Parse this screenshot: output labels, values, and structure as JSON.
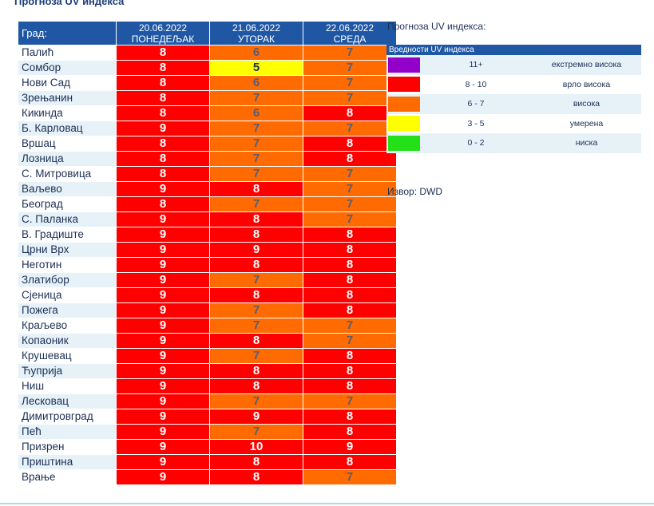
{
  "title": "Прогноза UV индекса",
  "table": {
    "city_header": "Град:",
    "columns": [
      {
        "date": "20.06.2022",
        "day": "ПОНЕДЕЉАК"
      },
      {
        "date": "21.06.2022",
        "day": "УТОРАК"
      },
      {
        "date": "22.06.2022",
        "day": "СРЕДА"
      }
    ],
    "rows": [
      {
        "city": "Палић",
        "values": [
          "8",
          "6",
          "7"
        ]
      },
      {
        "city": "Сомбор",
        "values": [
          "8",
          "5",
          "7"
        ]
      },
      {
        "city": "Нови Сад",
        "values": [
          "8",
          "6",
          "7"
        ]
      },
      {
        "city": "Зрењанин",
        "values": [
          "8",
          "7",
          "7"
        ]
      },
      {
        "city": "Кикинда",
        "values": [
          "8",
          "6",
          "8"
        ]
      },
      {
        "city": "Б. Карловац",
        "values": [
          "9",
          "7",
          "7"
        ]
      },
      {
        "city": "Вршац",
        "values": [
          "8",
          "7",
          "8"
        ]
      },
      {
        "city": "Лозница",
        "values": [
          "8",
          "7",
          "8"
        ]
      },
      {
        "city": "С. Митровица",
        "values": [
          "8",
          "7",
          "7"
        ]
      },
      {
        "city": "Ваљево",
        "values": [
          "9",
          "8",
          "7"
        ]
      },
      {
        "city": "Београд",
        "values": [
          "8",
          "7",
          "7"
        ]
      },
      {
        "city": "С. Паланка",
        "values": [
          "9",
          "8",
          "7"
        ]
      },
      {
        "city": "В. Градиште",
        "values": [
          "9",
          "8",
          "8"
        ]
      },
      {
        "city": "Црни Врх",
        "values": [
          "9",
          "9",
          "8"
        ]
      },
      {
        "city": "Неготин",
        "values": [
          "9",
          "8",
          "8"
        ]
      },
      {
        "city": "Златибор",
        "values": [
          "9",
          "7",
          "8"
        ]
      },
      {
        "city": "Сјеница",
        "values": [
          "9",
          "8",
          "8"
        ]
      },
      {
        "city": "Пожега",
        "values": [
          "9",
          "7",
          "8"
        ]
      },
      {
        "city": "Краљево",
        "values": [
          "9",
          "7",
          "7"
        ]
      },
      {
        "city": "Копаоник",
        "values": [
          "9",
          "8",
          "7"
        ]
      },
      {
        "city": "Крушевац",
        "values": [
          "9",
          "7",
          "8"
        ]
      },
      {
        "city": "Ћуприја",
        "values": [
          "9",
          "8",
          "8"
        ]
      },
      {
        "city": "Ниш",
        "values": [
          "9",
          "8",
          "8"
        ]
      },
      {
        "city": "Лесковац",
        "values": [
          "9",
          "7",
          "7"
        ]
      },
      {
        "city": "Димитровград",
        "values": [
          "9",
          "9",
          "8"
        ]
      },
      {
        "city": "Пећ",
        "values": [
          "9",
          "7",
          "8"
        ]
      },
      {
        "city": "Призрен",
        "values": [
          "9",
          "10",
          "9"
        ]
      },
      {
        "city": "Приштина",
        "values": [
          "9",
          "8",
          "8"
        ]
      },
      {
        "city": "Врање",
        "values": [
          "9",
          "8",
          "7"
        ]
      }
    ]
  },
  "legend": {
    "title": "Прогноза UV индекса:",
    "header": "Вредности UV индекса",
    "items": [
      {
        "range": "11+",
        "label": "екстремно висока",
        "color": "#9200c9"
      },
      {
        "range": "8 - 10",
        "label": "врло висока",
        "color": "#fe0000"
      },
      {
        "range": "6 - 7",
        "label": "висока",
        "color": "#ff6b00"
      },
      {
        "range": "3 - 5",
        "label": "умерена",
        "color": "#ffff00"
      },
      {
        "range": "0 - 2",
        "label": "ниска",
        "color": "#23e019"
      }
    ]
  },
  "source": "Извор: DWD"
}
